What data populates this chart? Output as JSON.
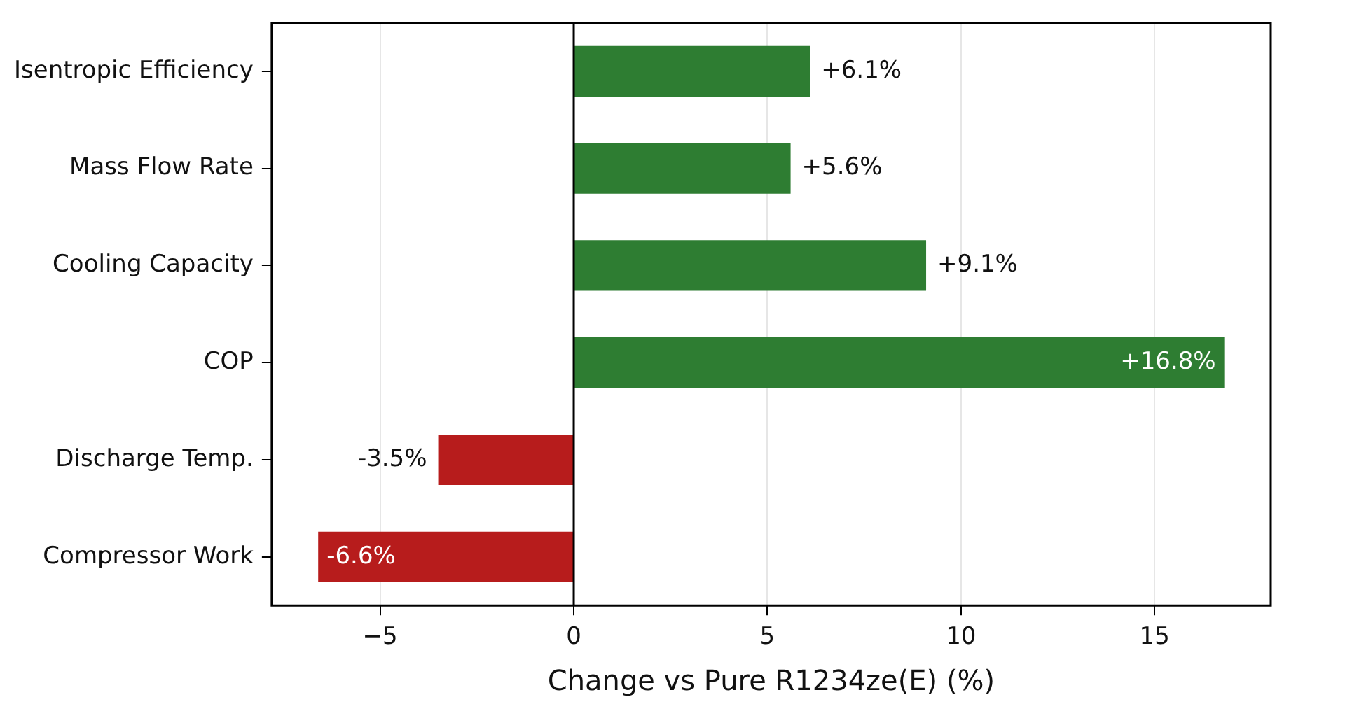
{
  "chart_data": {
    "type": "bar",
    "orientation": "horizontal",
    "xlabel": "Change vs Pure R1234ze(E) (%)",
    "categories": [
      "Isentropic Efficiency",
      "Mass Flow Rate",
      "Cooling Capacity",
      "COP",
      "Discharge Temp.",
      "Compressor Work"
    ],
    "values": [
      6.1,
      5.6,
      9.1,
      16.8,
      -3.5,
      -6.6
    ],
    "colors": [
      "#2e7d32",
      "#2e7d32",
      "#2e7d32",
      "#2e7d32",
      "#b71c1c",
      "#b71c1c"
    ],
    "value_labels": [
      "+6.1%",
      "+5.6%",
      "+9.1%",
      "+16.8%",
      "-3.5%",
      "-6.6%"
    ],
    "xlim": [
      -7.8,
      18
    ],
    "xticks": [
      {
        "value": -5,
        "label": "−5"
      },
      0,
      5,
      10,
      15
    ],
    "ref_lines": [
      {
        "axis": "x",
        "value": 0,
        "color": "#000000"
      }
    ],
    "grid": "x",
    "legend": false
  }
}
